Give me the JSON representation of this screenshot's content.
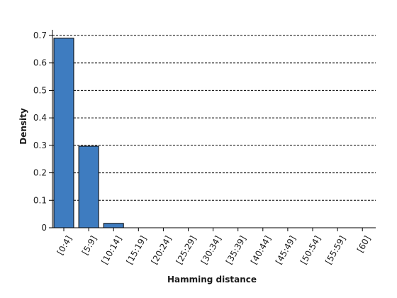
{
  "chart_data": {
    "type": "bar",
    "xlabel": "Hamming distance",
    "ylabel": "Density",
    "ylim": [
      0,
      0.7
    ],
    "yticks": [
      "0",
      "0.1",
      "0.2",
      "0.3",
      "0.4",
      "0.5",
      "0.6",
      "0.7"
    ],
    "grid": "horizontal dashed",
    "categories": [
      "[0:4]",
      "[5:9]",
      "[10:14]",
      "[15:19]",
      "[20:24]",
      "[25:29]",
      "[30:34]",
      "[35:39]",
      "[40:44]",
      "[45:49]",
      "[50:54]",
      "[55:59]",
      "[60]"
    ],
    "values": [
      0.69,
      0.297,
      0.016,
      0,
      0,
      0,
      0,
      0,
      0,
      0,
      0,
      0,
      0
    ],
    "bar_color": "#3e7cc0"
  }
}
